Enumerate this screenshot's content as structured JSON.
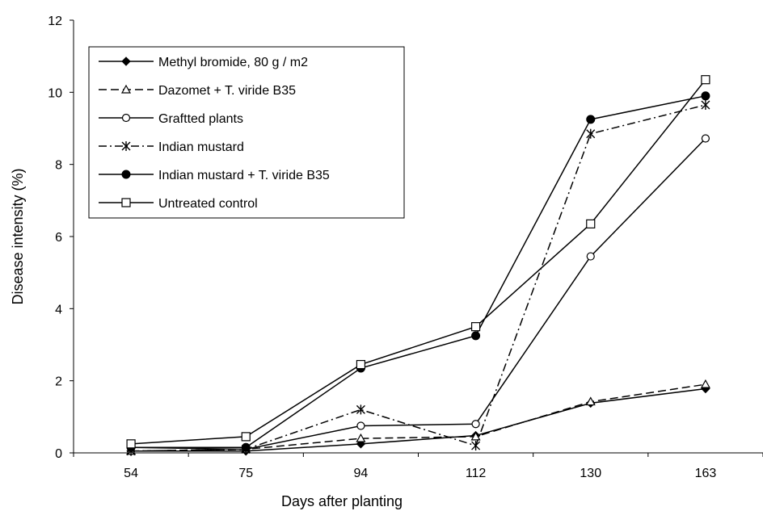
{
  "chart_data": {
    "type": "line",
    "categories": [
      "54",
      "75",
      "94",
      "112",
      "130",
      "163"
    ],
    "xlabel": "Days after planting",
    "ylabel": "Disease intensity (%)",
    "ylim": [
      0,
      12
    ],
    "yticks": [
      "0",
      "2",
      "4",
      "6",
      "8",
      "10",
      "12"
    ],
    "grid": false,
    "legend_position": "top-left",
    "series": [
      {
        "name": "Methyl bromide, 80 g / m2",
        "marker": "diamond-filled",
        "dash": "solid",
        "color": "#000000",
        "values": [
          0.05,
          0.05,
          0.25,
          0.48,
          1.38,
          1.78
        ]
      },
      {
        "name": "Dazomet + T. viride B35",
        "marker": "triangle-open",
        "dash": "dashed",
        "color": "#000000",
        "values": [
          0.05,
          0.1,
          0.4,
          0.45,
          1.42,
          1.9
        ]
      },
      {
        "name": "Graftted plants",
        "marker": "circle-open",
        "dash": "solid",
        "color": "#000000",
        "values": [
          0.15,
          0.1,
          0.75,
          0.8,
          5.45,
          8.72
        ]
      },
      {
        "name": "Indian mustard",
        "marker": "star",
        "dash": "dashdot",
        "color": "#000000",
        "values": [
          0.05,
          0.1,
          1.2,
          0.2,
          8.85,
          9.65
        ]
      },
      {
        "name": "Indian mustard + T. viride B35",
        "marker": "circle-filled",
        "dash": "solid",
        "color": "#000000",
        "values": [
          0.15,
          0.15,
          2.35,
          3.25,
          9.25,
          9.9
        ]
      },
      {
        "name": "Untreated control",
        "marker": "square-open",
        "dash": "solid",
        "color": "#000000",
        "values": [
          0.25,
          0.45,
          2.45,
          3.5,
          6.35,
          10.35
        ]
      }
    ]
  }
}
